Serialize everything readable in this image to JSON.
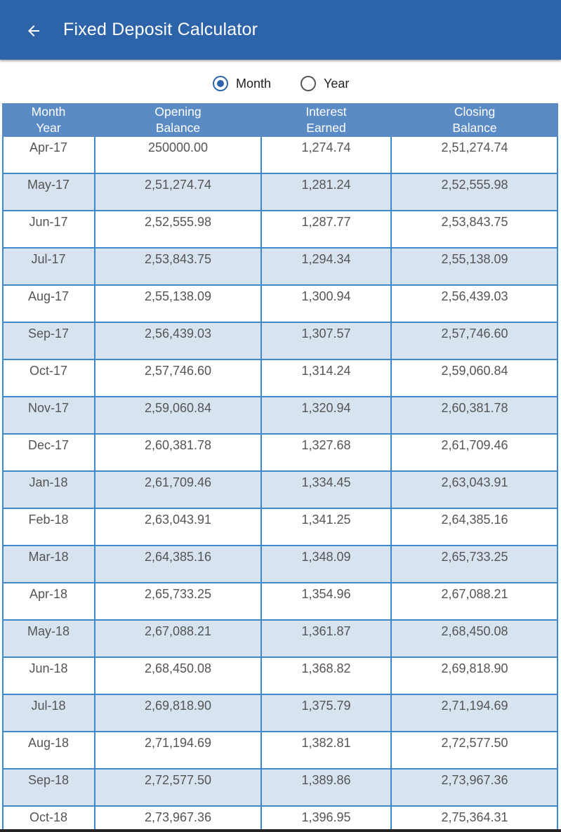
{
  "appbar": {
    "title": "Fixed Deposit Calculator",
    "back_icon": "arrow-left-icon",
    "color": "#2d63a8"
  },
  "period_toggle": {
    "options": [
      {
        "label": "Month",
        "checked": true
      },
      {
        "label": "Year",
        "checked": false
      }
    ]
  },
  "table": {
    "header_color": "#5b8bc4",
    "stripe_color": "#d7e4ef",
    "headers": [
      [
        "Month",
        "Year"
      ],
      [
        "Opening",
        "Balance"
      ],
      [
        "Interest",
        "Earned"
      ],
      [
        "Closing",
        "Balance"
      ]
    ],
    "rows": [
      [
        "Apr-17",
        "250000.00",
        "1,274.74",
        "2,51,274.74"
      ],
      [
        "May-17",
        "2,51,274.74",
        "1,281.24",
        "2,52,555.98"
      ],
      [
        "Jun-17",
        "2,52,555.98",
        "1,287.77",
        "2,53,843.75"
      ],
      [
        "Jul-17",
        "2,53,843.75",
        "1,294.34",
        "2,55,138.09"
      ],
      [
        "Aug-17",
        "2,55,138.09",
        "1,300.94",
        "2,56,439.03"
      ],
      [
        "Sep-17",
        "2,56,439.03",
        "1,307.57",
        "2,57,746.60"
      ],
      [
        "Oct-17",
        "2,57,746.60",
        "1,314.24",
        "2,59,060.84"
      ],
      [
        "Nov-17",
        "2,59,060.84",
        "1,320.94",
        "2,60,381.78"
      ],
      [
        "Dec-17",
        "2,60,381.78",
        "1,327.68",
        "2,61,709.46"
      ],
      [
        "Jan-18",
        "2,61,709.46",
        "1,334.45",
        "2,63,043.91"
      ],
      [
        "Feb-18",
        "2,63,043.91",
        "1,341.25",
        "2,64,385.16"
      ],
      [
        "Mar-18",
        "2,64,385.16",
        "1,348.09",
        "2,65,733.25"
      ],
      [
        "Apr-18",
        "2,65,733.25",
        "1,354.96",
        "2,67,088.21"
      ],
      [
        "May-18",
        "2,67,088.21",
        "1,361.87",
        "2,68,450.08"
      ],
      [
        "Jun-18",
        "2,68,450.08",
        "1,368.82",
        "2,69,818.90"
      ],
      [
        "Jul-18",
        "2,69,818.90",
        "1,375.79",
        "2,71,194.69"
      ],
      [
        "Aug-18",
        "2,71,194.69",
        "1,382.81",
        "2,72,577.50"
      ],
      [
        "Sep-18",
        "2,72,577.50",
        "1,389.86",
        "2,73,967.36"
      ],
      [
        "Oct-18",
        "2,73,967.36",
        "1,396.95",
        "2,75,364.31"
      ]
    ]
  }
}
